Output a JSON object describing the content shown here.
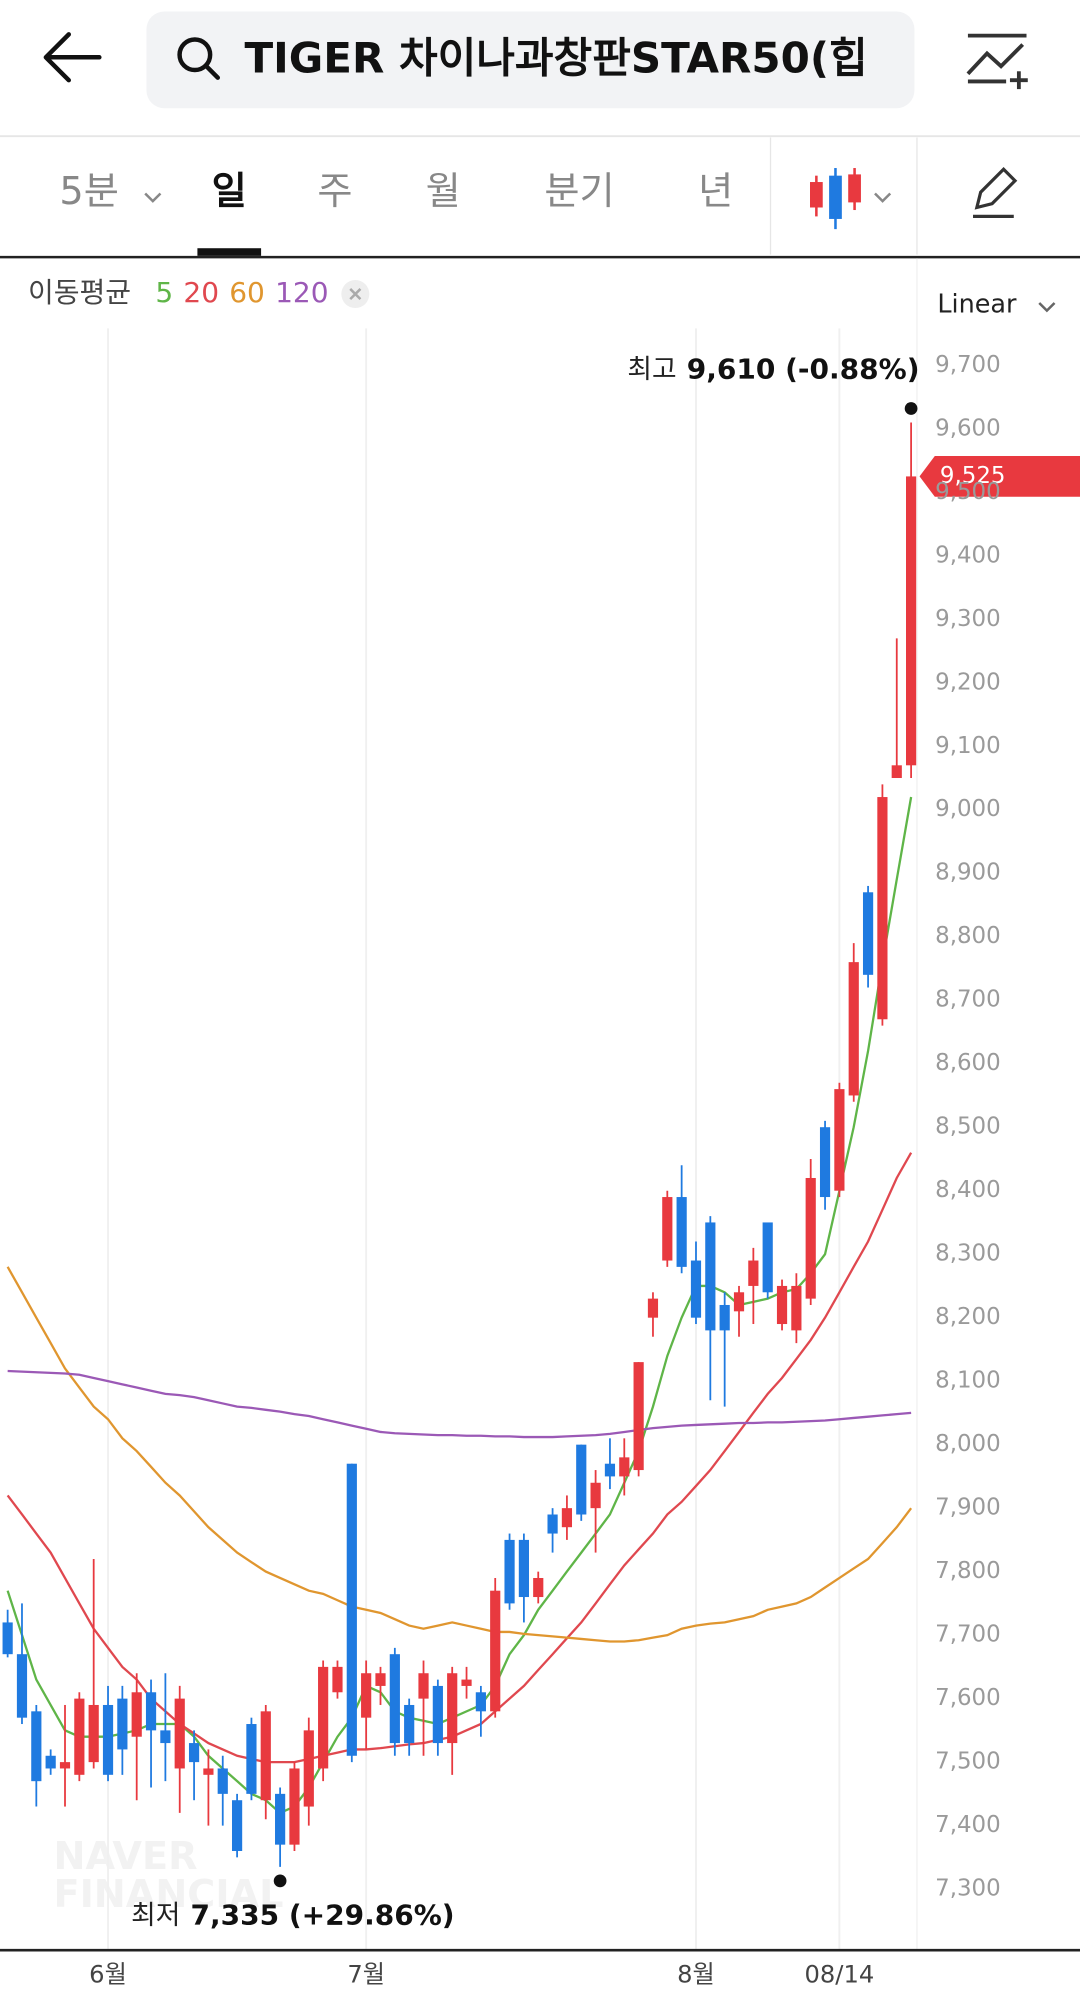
{
  "header": {
    "search_text": "TIGER 차이나과창판STAR50(힙",
    "tabs": [
      "5분",
      "일",
      "주",
      "월",
      "분기",
      "년"
    ]
  },
  "chart_data": {
    "type": "candlestick",
    "ma_title": "이동평균",
    "scale_mode": "Linear",
    "watermark": [
      "NAVER",
      "FINANCIAL"
    ],
    "categories": [
      null,
      null,
      null,
      null,
      null,
      null,
      null,
      "6월",
      null,
      null,
      null,
      null,
      null,
      null,
      null,
      null,
      null,
      null,
      null,
      null,
      null,
      null,
      null,
      null,
      null,
      "7월",
      null,
      null,
      null,
      null,
      null,
      null,
      null,
      null,
      null,
      null,
      null,
      null,
      null,
      null,
      null,
      null,
      null,
      null,
      null,
      null,
      null,
      null,
      "8월",
      null,
      null,
      null,
      null,
      null,
      null,
      null,
      null,
      null,
      "08/14",
      null,
      null,
      null,
      null,
      null
    ],
    "open": [
      7720,
      7670,
      7580,
      7510,
      7490,
      7480,
      7500,
      7590,
      7600,
      7540,
      7610,
      7550,
      7490,
      7530,
      7480,
      7490,
      7440,
      7560,
      7440,
      7450,
      7370,
      7430,
      7490,
      7610,
      7970,
      7570,
      7620,
      7670,
      7590,
      7600,
      7620,
      7530,
      7620,
      7610,
      7580,
      7850,
      7850,
      7760,
      7890,
      7870,
      8000,
      7900,
      7970,
      7950,
      7960,
      8200,
      8290,
      8390,
      8290,
      8350,
      8220,
      8210,
      8250,
      8350,
      8190,
      8180,
      8230,
      8500,
      8400,
      8550,
      8870,
      8670,
      9050,
      9070
    ],
    "high": [
      7740,
      7750,
      7590,
      7520,
      7590,
      7610,
      7820,
      7620,
      7620,
      7640,
      7630,
      7640,
      7620,
      7550,
      7520,
      7510,
      7450,
      7570,
      7590,
      7460,
      7500,
      7570,
      7660,
      7660,
      7970,
      7660,
      7650,
      7680,
      7600,
      7660,
      7630,
      7650,
      7650,
      7620,
      7790,
      7860,
      7860,
      7800,
      7900,
      7920,
      8000,
      7960,
      8010,
      8010,
      8130,
      8240,
      8400,
      8440,
      8320,
      8360,
      8240,
      8250,
      8310,
      8350,
      8260,
      8270,
      8450,
      8510,
      8570,
      8790,
      8880,
      9040,
      9270,
      9610
    ],
    "low": [
      7665,
      7560,
      7430,
      7480,
      7430,
      7470,
      7490,
      7470,
      7480,
      7440,
      7460,
      7470,
      7420,
      7440,
      7400,
      7400,
      7350,
      7440,
      7410,
      7335,
      7360,
      7400,
      7470,
      7600,
      7500,
      7520,
      7590,
      7510,
      7510,
      7510,
      7510,
      7480,
      7600,
      7540,
      7570,
      7740,
      7720,
      7750,
      7830,
      7850,
      7880,
      7830,
      7930,
      7920,
      7950,
      8170,
      8280,
      8270,
      8190,
      8070,
      8060,
      8170,
      8190,
      8230,
      8180,
      8160,
      8220,
      8370,
      8390,
      8540,
      8720,
      8660,
      9050,
      9050
    ],
    "close": [
      7670,
      7570,
      7470,
      7490,
      7500,
      7600,
      7590,
      7480,
      7520,
      7610,
      7550,
      7530,
      7600,
      7500,
      7490,
      7450,
      7360,
      7450,
      7580,
      7370,
      7490,
      7550,
      7650,
      7650,
      7510,
      7640,
      7640,
      7530,
      7530,
      7640,
      7530,
      7640,
      7630,
      7580,
      7770,
      7750,
      7760,
      7790,
      7860,
      7900,
      7890,
      7940,
      7950,
      7980,
      8130,
      8230,
      8390,
      8280,
      8200,
      8180,
      8180,
      8240,
      8290,
      8240,
      8250,
      8250,
      8420,
      8390,
      8560,
      8760,
      8740,
      9020,
      9070,
      9525
    ],
    "up_color": "#e8393f",
    "down_color": "#1f7ae0",
    "series": [
      {
        "name": "5",
        "color": "#5fb548",
        "values": [
          7770,
          7700,
          7630,
          7590,
          7550,
          7540,
          7540,
          7540,
          7545,
          7550,
          7560,
          7560,
          7560,
          7540,
          7510,
          7490,
          7470,
          7450,
          7440,
          7420,
          7430,
          7460,
          7500,
          7540,
          7570,
          7620,
          7610,
          7580,
          7570,
          7565,
          7560,
          7570,
          7580,
          7590,
          7620,
          7670,
          7700,
          7740,
          7770,
          7800,
          7830,
          7860,
          7890,
          7940,
          7990,
          8060,
          8140,
          8200,
          8250,
          8250,
          8240,
          8220,
          8225,
          8230,
          8240,
          8245,
          8270,
          8300,
          8400,
          8500,
          8620,
          8760,
          8890,
          9020
        ]
      },
      {
        "name": "20",
        "color": "#e0484f",
        "values": [
          7920,
          7890,
          7860,
          7830,
          7790,
          7750,
          7710,
          7680,
          7650,
          7630,
          7600,
          7580,
          7560,
          7545,
          7530,
          7520,
          7510,
          7505,
          7500,
          7500,
          7500,
          7505,
          7510,
          7515,
          7520,
          7520,
          7522,
          7525,
          7528,
          7530,
          7535,
          7540,
          7550,
          7560,
          7580,
          7600,
          7620,
          7645,
          7670,
          7695,
          7720,
          7750,
          7780,
          7810,
          7835,
          7860,
          7890,
          7910,
          7935,
          7960,
          7990,
          8020,
          8050,
          8080,
          8105,
          8135,
          8165,
          8200,
          8240,
          8280,
          8320,
          8370,
          8420,
          8460
        ]
      },
      {
        "name": "60",
        "color": "#e0962f",
        "values": [
          8280,
          8240,
          8200,
          8160,
          8120,
          8090,
          8060,
          8040,
          8010,
          7990,
          7965,
          7940,
          7920,
          7895,
          7870,
          7850,
          7830,
          7815,
          7800,
          7790,
          7780,
          7770,
          7765,
          7755,
          7745,
          7740,
          7735,
          7725,
          7715,
          7710,
          7715,
          7720,
          7715,
          7710,
          7705,
          7705,
          7702,
          7700,
          7698,
          7696,
          7694,
          7692,
          7690,
          7690,
          7692,
          7696,
          7700,
          7710,
          7715,
          7718,
          7720,
          7725,
          7730,
          7740,
          7745,
          7750,
          7760,
          7775,
          7790,
          7805,
          7820,
          7845,
          7870,
          7900
        ]
      },
      {
        "name": "120",
        "color": "#9b59b6",
        "values": [
          8116,
          8115,
          8114,
          8113,
          8112,
          8110,
          8105,
          8100,
          8095,
          8090,
          8085,
          8080,
          8078,
          8075,
          8070,
          8065,
          8060,
          8058,
          8055,
          8052,
          8048,
          8045,
          8040,
          8035,
          8030,
          8025,
          8020,
          8018,
          8017,
          8016,
          8015,
          8015,
          8014,
          8014,
          8013,
          8013,
          8012,
          8012,
          8012,
          8013,
          8014,
          8015,
          8017,
          8020,
          8023,
          8026,
          8028,
          8030,
          8031,
          8032,
          8033,
          8034,
          8034,
          8035,
          8035,
          8036,
          8037,
          8038,
          8040,
          8042,
          8044,
          8046,
          8048,
          8050
        ]
      }
    ],
    "ylim": [
      7200,
      9800
    ],
    "yticks": [
      {
        "value": 7300,
        "label": "7,300"
      },
      {
        "value": 7400,
        "label": "7,400"
      },
      {
        "value": 7500,
        "label": "7,500"
      },
      {
        "value": 7600,
        "label": "7,600"
      },
      {
        "value": 7700,
        "label": "7,700"
      },
      {
        "value": 7800,
        "label": "7,800"
      },
      {
        "value": 7900,
        "label": "7,900"
      },
      {
        "value": 8000,
        "label": "8,000"
      },
      {
        "value": 8100,
        "label": "8,100"
      },
      {
        "value": 8200,
        "label": "8,200"
      },
      {
        "value": 8300,
        "label": "8,300"
      },
      {
        "value": 8400,
        "label": "8,400"
      },
      {
        "value": 8500,
        "label": "8,500"
      },
      {
        "value": 8600,
        "label": "8,600"
      },
      {
        "value": 8700,
        "label": "8,700"
      },
      {
        "value": 8800,
        "label": "8,800"
      },
      {
        "value": 8900,
        "label": "8,900"
      },
      {
        "value": 9000,
        "label": "9,000"
      },
      {
        "value": 9100,
        "label": "9,100"
      },
      {
        "value": 9200,
        "label": "9,200"
      },
      {
        "value": 9300,
        "label": "9,300"
      },
      {
        "value": 9400,
        "label": "9,400"
      },
      {
        "value": 9500,
        "label": "9,500"
      },
      {
        "value": 9600,
        "label": "9,600"
      },
      {
        "value": 9700,
        "label": "9,700"
      }
    ],
    "grid": "x",
    "last_price": {
      "value": 9525,
      "label": "9,525"
    },
    "high_annotation": {
      "label": "최고",
      "text": "9,610 (-0.88%)"
    },
    "low_annotation": {
      "label": "최저",
      "text": "7,335 (+29.86%)"
    }
  }
}
